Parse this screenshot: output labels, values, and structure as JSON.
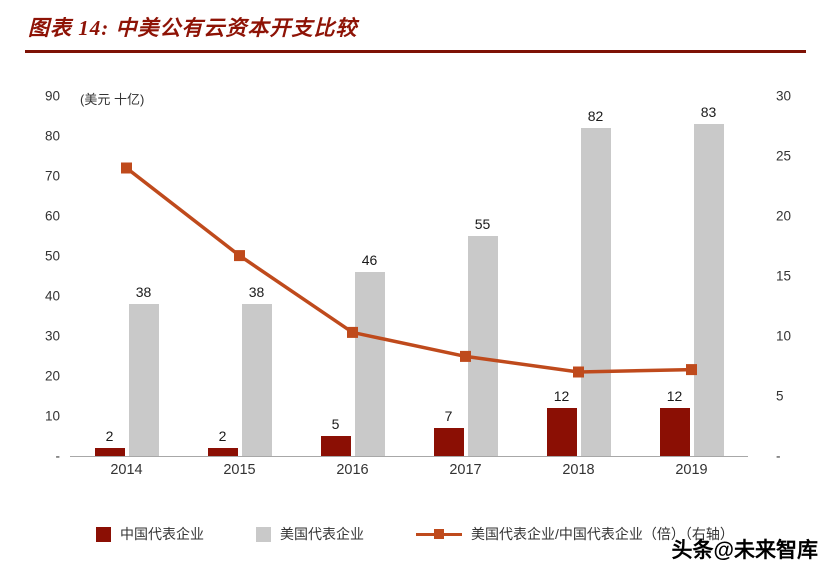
{
  "header": {
    "title": "图表 14:  中美公有云资本开支比较"
  },
  "watermark": "头条@未来智库",
  "colors": {
    "title": "#8E1306",
    "rule": "#7E1205",
    "china_bar": "#8B0F04",
    "us_bar": "#C9C9C9",
    "ratio_line": "#BF4A1C"
  },
  "chart_data": {
    "type": "bar",
    "subtype": "clustered bars with line overlay (secondary axis)",
    "categories": [
      "2014",
      "2015",
      "2016",
      "2017",
      "2018",
      "2019"
    ],
    "series": [
      {
        "name": "中国代表企业",
        "type": "bar",
        "axis": "left",
        "color": "#8B0F04",
        "values": [
          2,
          2,
          5,
          7,
          12,
          12
        ]
      },
      {
        "name": "美国代表企业",
        "type": "bar",
        "axis": "left",
        "color": "#C9C9C9",
        "values": [
          38,
          38,
          46,
          55,
          82,
          83
        ]
      },
      {
        "name": "美国代表企业/中国代表企业（倍）（右轴）",
        "type": "line",
        "axis": "right",
        "color": "#BF4A1C",
        "values": [
          24,
          16.7,
          10.3,
          8.3,
          7.0,
          7.2
        ]
      }
    ],
    "left_axis": {
      "label": "(美元 十亿)",
      "min": 0,
      "max": 90,
      "ticks": [
        "90",
        "80",
        "70",
        "60",
        "50",
        "40",
        "30",
        "20",
        "10",
        "-"
      ]
    },
    "right_axis": {
      "min": 0,
      "max": 30,
      "ticks": [
        "30",
        "25",
        "20",
        "15",
        "10",
        "5",
        "-"
      ]
    },
    "grid": false,
    "legend_position": "bottom"
  }
}
